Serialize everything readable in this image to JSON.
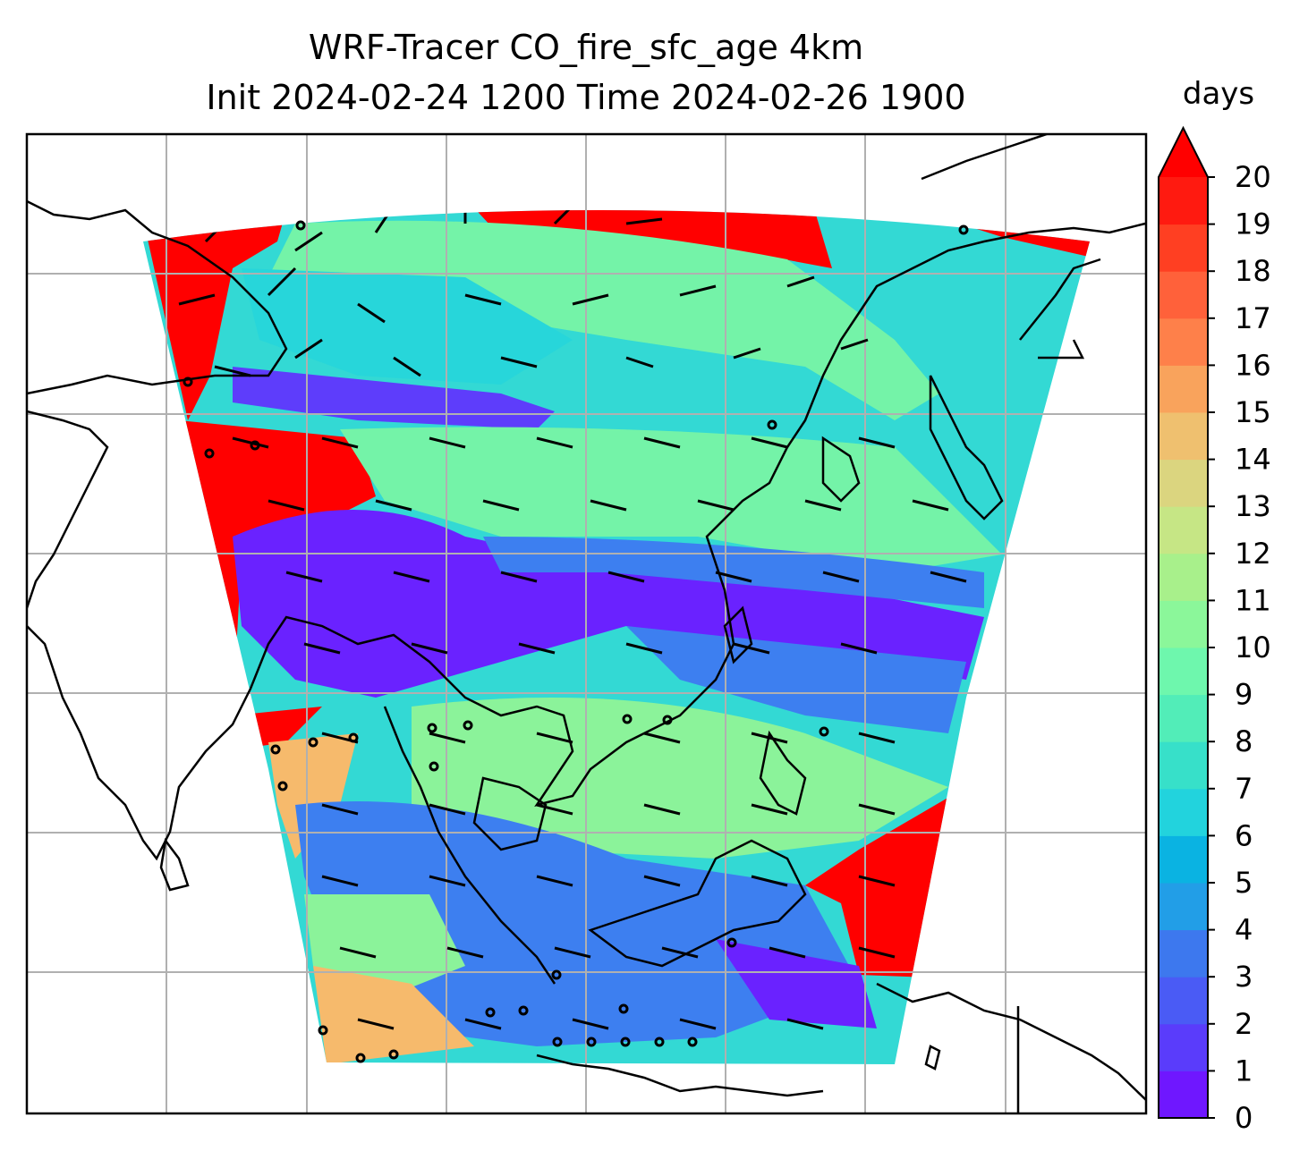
{
  "title": {
    "line1": "WRF-Tracer CO_fire_sfc_age 4km",
    "line2": "Init 2024-02-24 1200 Time 2024-02-26 1900"
  },
  "colorbar": {
    "unit_label": "days",
    "ticks": [
      "0",
      "1",
      "2",
      "3",
      "4",
      "5",
      "6",
      "7",
      "8",
      "9",
      "10",
      "11",
      "12",
      "13",
      "14",
      "15",
      "16",
      "17",
      "18",
      "19",
      "20"
    ],
    "extend": "max",
    "colors": [
      "#6f17ff",
      "#5a3cfb",
      "#4a5bf5",
      "#3d78ee",
      "#229ee7",
      "#0ab3e2",
      "#22d3dd",
      "#37e0c9",
      "#52edb8",
      "#6ef7ad",
      "#8bf79a",
      "#a8f08b",
      "#c6e685",
      "#dbd57f",
      "#efc06f",
      "#f9a35c",
      "#fe804a",
      "#ff613a",
      "#ff3f22",
      "#ff1a10",
      "#ff0000"
    ]
  },
  "map": {
    "projection_region": "Southeast / East Asia",
    "grid": true,
    "domain_colors": {
      "stale": "#ff0000",
      "old_orange": "#f6ba6c",
      "green": "#74f3a8",
      "cyan": "#27d6da",
      "teal": "#3fe6c6",
      "blue": "#3d7ff0",
      "purple": "#6a22ff"
    }
  }
}
